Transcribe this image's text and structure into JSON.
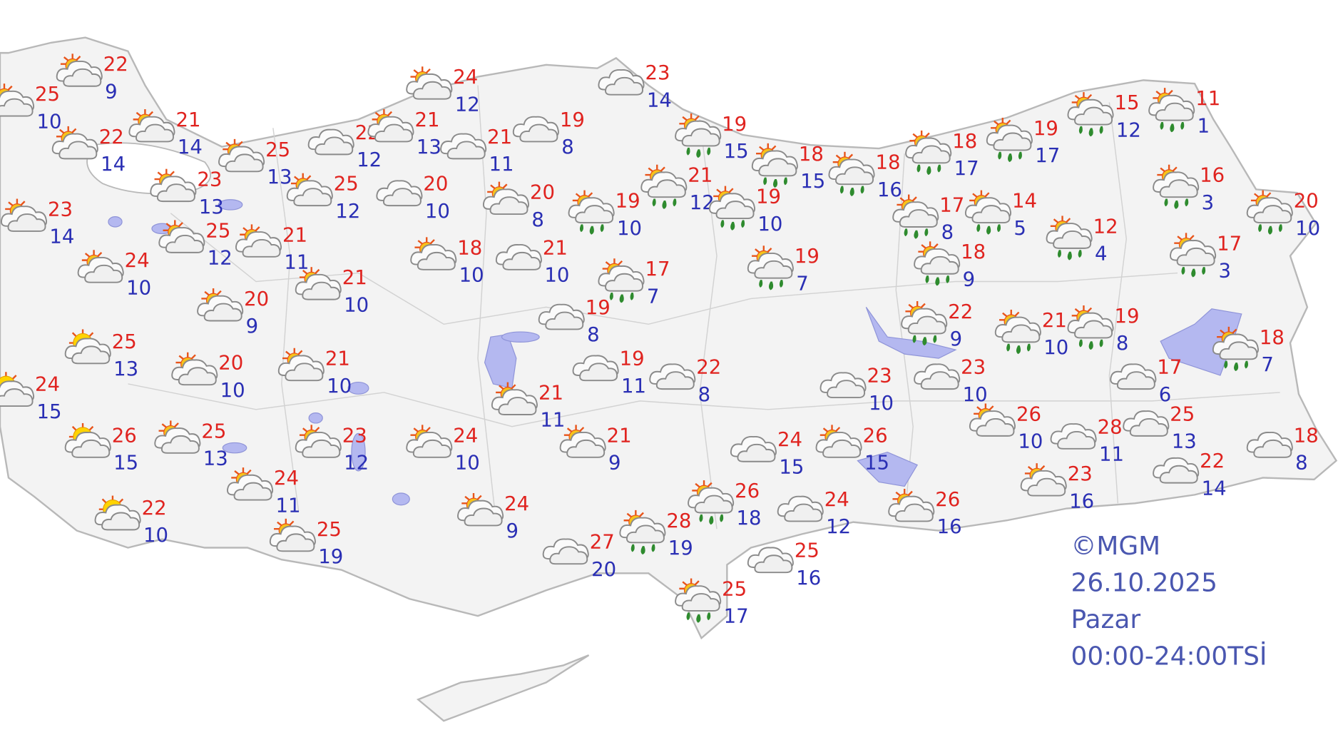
{
  "map": {
    "colors": {
      "land": "#f3f3f3",
      "border": "#c8c8c8",
      "water": "#b4b8f0",
      "max_temp": "#e0231f",
      "min_temp": "#2a2fb4",
      "rain_drop": "#2e8b2e"
    },
    "stations": [
      {
        "icon": "partly-cloudy",
        "max": "25",
        "min": "10"
      },
      {
        "icon": "partly-cloudy",
        "max": "22",
        "min": "9"
      },
      {
        "icon": "partly-cloudy",
        "max": "22",
        "min": "14"
      },
      {
        "icon": "partly-cloudy",
        "max": "21",
        "min": "14"
      },
      {
        "icon": "partly-cloudy",
        "max": "25",
        "min": "13"
      },
      {
        "icon": "partly-cloudy",
        "max": "23",
        "min": "13"
      },
      {
        "icon": "partly-cloudy",
        "max": "23",
        "min": "14"
      },
      {
        "icon": "partly-cloudy",
        "max": "25",
        "min": "12"
      },
      {
        "icon": "partly-cloudy",
        "max": "21",
        "min": "11"
      },
      {
        "icon": "partly-cloudy",
        "max": "24",
        "min": "10"
      },
      {
        "icon": "partly-cloudy",
        "max": "25",
        "min": "12"
      },
      {
        "icon": "cloudy",
        "max": "22",
        "min": "12"
      },
      {
        "icon": "partly-cloudy",
        "max": "21",
        "min": "13"
      },
      {
        "icon": "partly-cloudy",
        "max": "24",
        "min": "12"
      },
      {
        "icon": "cloudy",
        "max": "21",
        "min": "11"
      },
      {
        "icon": "cloudy",
        "max": "20",
        "min": "10"
      },
      {
        "icon": "partly-cloudy",
        "max": "21",
        "min": "10"
      },
      {
        "icon": "partly-cloudy",
        "max": "20",
        "min": "9"
      },
      {
        "icon": "partly-cloudy",
        "max": "18",
        "min": "10"
      },
      {
        "icon": "cloudy",
        "max": "21",
        "min": "10"
      },
      {
        "icon": "partly-cloudy",
        "max": "20",
        "min": "8"
      },
      {
        "icon": "cloudy",
        "max": "19",
        "min": "8"
      },
      {
        "icon": "cloudy",
        "max": "23",
        "min": "14"
      },
      {
        "icon": "rain",
        "max": "19",
        "min": "15"
      },
      {
        "icon": "rain",
        "max": "19",
        "min": "10"
      },
      {
        "icon": "rain",
        "max": "21",
        "min": "12"
      },
      {
        "icon": "rain",
        "max": "19",
        "min": "10"
      },
      {
        "icon": "rain",
        "max": "18",
        "min": "15"
      },
      {
        "icon": "rain",
        "max": "18",
        "min": "16"
      },
      {
        "icon": "rain",
        "max": "18",
        "min": "17"
      },
      {
        "icon": "rain",
        "max": "19",
        "min": "17"
      },
      {
        "icon": "rain",
        "max": "15",
        "min": "12"
      },
      {
        "icon": "rain",
        "max": "11",
        "min": "1"
      },
      {
        "icon": "rain",
        "max": "16",
        "min": "3"
      },
      {
        "icon": "rain",
        "max": "20",
        "min": "10"
      },
      {
        "icon": "rain",
        "max": "17",
        "min": "3"
      },
      {
        "icon": "rain",
        "max": "12",
        "min": "4"
      },
      {
        "icon": "rain",
        "max": "14",
        "min": "5"
      },
      {
        "icon": "rain",
        "max": "17",
        "min": "8"
      },
      {
        "icon": "rain",
        "max": "18",
        "min": "9"
      },
      {
        "icon": "rain",
        "max": "17",
        "min": "7"
      },
      {
        "icon": "rain",
        "max": "19",
        "min": "7"
      },
      {
        "icon": "cloudy",
        "max": "19",
        "min": "8"
      },
      {
        "icon": "cloudy",
        "max": "19",
        "min": "11"
      },
      {
        "icon": "cloudy",
        "max": "22",
        "min": "8"
      },
      {
        "icon": "partly-cloudy",
        "max": "21",
        "min": "11"
      },
      {
        "icon": "partly-cloudy",
        "max": "21",
        "min": "9"
      },
      {
        "icon": "partly-cloudy",
        "max": "24",
        "min": "10"
      },
      {
        "icon": "partly-cloudy",
        "max": "23",
        "min": "12"
      },
      {
        "icon": "partly-cloudy",
        "max": "21",
        "min": "10"
      },
      {
        "icon": "partly-cloudy",
        "max": "20",
        "min": "10"
      },
      {
        "icon": "sunny-cloud",
        "max": "25",
        "min": "13"
      },
      {
        "icon": "sunny-cloud",
        "max": "24",
        "min": "15"
      },
      {
        "icon": "sunny-cloud",
        "max": "26",
        "min": "15"
      },
      {
        "icon": "partly-cloudy",
        "max": "25",
        "min": "13"
      },
      {
        "icon": "partly-cloudy",
        "max": "24",
        "min": "11"
      },
      {
        "icon": "sunny-cloud",
        "max": "22",
        "min": "10"
      },
      {
        "icon": "partly-cloudy",
        "max": "25",
        "min": "19"
      },
      {
        "icon": "partly-cloudy",
        "max": "24",
        "min": "9"
      },
      {
        "icon": "cloudy",
        "max": "27",
        "min": "20"
      },
      {
        "icon": "rain",
        "max": "28",
        "min": "19"
      },
      {
        "icon": "rain",
        "max": "26",
        "min": "18"
      },
      {
        "icon": "cloudy",
        "max": "24",
        "min": "15"
      },
      {
        "icon": "cloudy",
        "max": "24",
        "min": "12"
      },
      {
        "icon": "cloudy",
        "max": "25",
        "min": "16"
      },
      {
        "icon": "rain",
        "max": "25",
        "min": "17"
      },
      {
        "icon": "partly-cloudy",
        "max": "26",
        "min": "15"
      },
      {
        "icon": "partly-cloudy",
        "max": "26",
        "min": "16"
      },
      {
        "icon": "cloudy",
        "max": "23",
        "min": "10"
      },
      {
        "icon": "cloudy",
        "max": "23",
        "min": "10"
      },
      {
        "icon": "rain",
        "max": "22",
        "min": "9"
      },
      {
        "icon": "rain",
        "max": "21",
        "min": "10"
      },
      {
        "icon": "rain",
        "max": "19",
        "min": "8"
      },
      {
        "icon": "cloudy",
        "max": "17",
        "min": "6"
      },
      {
        "icon": "rain",
        "max": "18",
        "min": "7"
      },
      {
        "icon": "partly-cloudy",
        "max": "26",
        "min": "10"
      },
      {
        "icon": "cloudy",
        "max": "28",
        "min": "11"
      },
      {
        "icon": "cloudy",
        "max": "25",
        "min": "13"
      },
      {
        "icon": "cloudy",
        "max": "18",
        "min": "8"
      },
      {
        "icon": "cloudy",
        "max": "22",
        "min": "14"
      },
      {
        "icon": "partly-cloudy",
        "max": "23",
        "min": "16"
      }
    ]
  },
  "footer": {
    "copyright": "©MGM",
    "date": "26.10.2025",
    "day": "Pazar",
    "time_range": "00:00-24:00TSİ"
  }
}
